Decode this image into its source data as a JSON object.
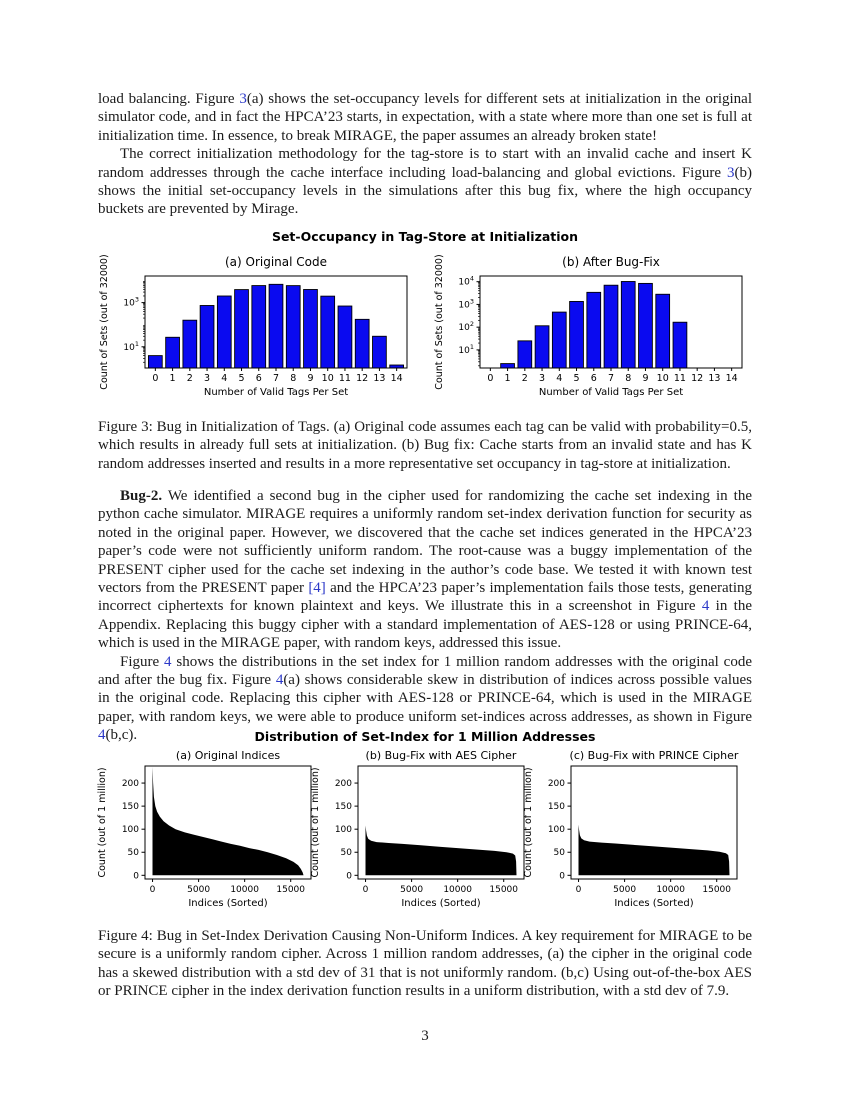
{
  "page_number": "3",
  "colors": {
    "link": "#2b38c8",
    "bar_fill": "#0a0af0",
    "bar_edge": "#000000",
    "area_fill": "#000000",
    "axis": "#000000",
    "text": "#1b1b1b"
  },
  "paragraphs": {
    "p1": [
      {
        "t": "load balancing. Figure "
      },
      {
        "t": "3",
        "c": "link"
      },
      {
        "t": "(a) shows the set-occupancy levels for different sets at initialization in the original simulator code, and in fact the HPCA’23 starts, in expectation, with a state where more than one set is full at initialization time. In essence, to break MIRAGE, the paper assumes an already broken state!"
      }
    ],
    "p2": [
      {
        "t": "The correct initialization methodology for the tag-store is to start with an invalid cache and insert K random addresses through the cache interface including load-balancing and global evictions. Figure "
      },
      {
        "t": "3",
        "c": "link"
      },
      {
        "t": "(b) shows the initial set-occupancy levels in the simulations after this bug fix, where the high occupancy buckets are prevented by Mirage."
      }
    ],
    "fig3_caption": [
      {
        "t": "Figure 3: Bug in Initialization of Tags. (a) Original code assumes each tag can be valid with probability=0.5, which results in already full sets at initialization. (b) Bug fix: Cache starts from an invalid state and has K random addresses inserted and results in a more representative set occupancy in tag-store at initialization."
      }
    ],
    "bug2": [
      {
        "t": "Bug-2.",
        "c": "bold"
      },
      {
        "t": " We identified a second bug in the cipher used for randomizing the cache set indexing in the python cache simulator. MIRAGE requires a uniformly random set-index derivation function for security as noted in the original paper. However, we discovered that the cache set indices generated in the HPCA’23 paper’s code were not sufficiently uniform random. The root-cause was a buggy implementation of the PRESENT cipher used for the cache set indexing in the author’s code base. We tested it with known test vectors from the PRESENT paper "
      },
      {
        "t": "[4]",
        "c": "link"
      },
      {
        "t": " and the HPCA’23 paper’s implementation fails those tests, generating incorrect ciphertexts for known plaintext and keys. We illustrate this in a screenshot in Figure "
      },
      {
        "t": "4",
        "c": "link"
      },
      {
        "t": " in the Appendix. Replacing this buggy cipher with a standard implementation of AES-128 or using PRINCE-64, which is used in the MIRAGE paper, with random keys, addressed this issue."
      }
    ],
    "p4": [
      {
        "t": "Figure "
      },
      {
        "t": "4",
        "c": "link"
      },
      {
        "t": " shows the distributions in the set index for 1 million random addresses with the original code and after the bug fix. Figure "
      },
      {
        "t": "4",
        "c": "link"
      },
      {
        "t": "(a) shows considerable skew in distribution of indices across possible values in the original code. Replacing this cipher with AES-128 or PRINCE-64, which is used in the MIRAGE paper, with random keys, we were able to produce uniform set-indices across addresses, as shown in Figure "
      },
      {
        "t": "4",
        "c": "link"
      },
      {
        "t": "(b,c)."
      }
    ],
    "fig4_caption": [
      {
        "t": "Figure 4: Bug in Set-Index Derivation Causing Non-Uniform Indices. A key requirement for MIRAGE to be secure is a uniformly random cipher. Across 1 million random addresses, (a) the cipher in the original code has a skewed distribution with a std dev of 31 that is not uniformly random. (b,c) Using out-of-the-box AES or PRINCE cipher in the index derivation function results in a uniform distribution, with a std dev of 7.9."
      }
    ]
  },
  "figures": {
    "fig3": {
      "suptitle": "Set-Occupancy in Tag-Store at Initialization"
    },
    "fig4": {
      "suptitle": "Distribution of Set-Index for 1 Million Addresses"
    }
  },
  "chart_data": [
    {
      "id": "fig3a",
      "type": "bar",
      "title": "(a) Original Code",
      "xlabel": "Number of Valid Tags Per Set",
      "ylabel": "Count of Sets (out of 32000)",
      "yscale": "log",
      "categories": [
        0,
        1,
        2,
        3,
        4,
        5,
        6,
        7,
        8,
        9,
        10,
        11,
        12,
        13,
        14
      ],
      "values": [
        4,
        27,
        160,
        740,
        1990,
        3880,
        5900,
        6720,
        5870,
        3920,
        1960,
        700,
        175,
        30,
        1.5
      ],
      "xlim": [
        -0.6,
        14.6
      ],
      "ylim": [
        1.1,
        16000
      ],
      "yticks": [
        10,
        1000
      ]
    },
    {
      "id": "fig3b",
      "type": "bar",
      "title": "(b) After Bug-Fix",
      "xlabel": "Number of Valid Tags Per Set",
      "ylabel": "Count of Sets (out of 32000)",
      "yscale": "log",
      "categories": [
        0,
        1,
        2,
        3,
        4,
        5,
        6,
        7,
        8,
        9,
        10,
        11,
        12,
        13,
        14
      ],
      "values": [
        0,
        2.5,
        25,
        115,
        460,
        1350,
        3400,
        7000,
        10200,
        8400,
        2800,
        165,
        0,
        0,
        0
      ],
      "xlim": [
        -0.6,
        14.6
      ],
      "ylim": [
        1.6,
        17800
      ],
      "yticks": [
        10,
        100,
        1000,
        10000
      ]
    },
    {
      "id": "fig4a",
      "type": "area",
      "title": "(a) Original Indices",
      "xlabel": "Indices (Sorted)",
      "ylabel": "Count (out of 1 million)",
      "points": [
        [
          0,
          235
        ],
        [
          60,
          200
        ],
        [
          150,
          170
        ],
        [
          300,
          150
        ],
        [
          500,
          138
        ],
        [
          800,
          127
        ],
        [
          1200,
          117
        ],
        [
          1800,
          108
        ],
        [
          2500,
          100
        ],
        [
          3500,
          93
        ],
        [
          4500,
          88
        ],
        [
          5500,
          83
        ],
        [
          6500,
          78
        ],
        [
          7500,
          73
        ],
        [
          8500,
          68
        ],
        [
          9500,
          64
        ],
        [
          10500,
          59
        ],
        [
          11500,
          55
        ],
        [
          12500,
          50
        ],
        [
          13500,
          44
        ],
        [
          14500,
          37
        ],
        [
          15300,
          29
        ],
        [
          15800,
          22
        ],
        [
          16100,
          14
        ],
        [
          16300,
          6
        ],
        [
          16384,
          0
        ]
      ],
      "xlim": [
        -819,
        17203
      ],
      "ylim": [
        -8,
        237
      ],
      "xticks": [
        0,
        5000,
        10000,
        15000
      ],
      "yticks": [
        0,
        50,
        100,
        150,
        200
      ]
    },
    {
      "id": "fig4b",
      "type": "area",
      "title": "(b) Bug-Fix with AES Cipher",
      "xlabel": "Indices (Sorted)",
      "ylabel": "Count (out of 1 million)",
      "points": [
        [
          0,
          108
        ],
        [
          60,
          97
        ],
        [
          150,
          86
        ],
        [
          300,
          79
        ],
        [
          600,
          75
        ],
        [
          1200,
          72
        ],
        [
          2500,
          70
        ],
        [
          4000,
          68
        ],
        [
          6000,
          65
        ],
        [
          8000,
          62
        ],
        [
          10000,
          59
        ],
        [
          12000,
          56
        ],
        [
          14000,
          53
        ],
        [
          15300,
          50
        ],
        [
          16000,
          47
        ],
        [
          16250,
          43
        ],
        [
          16340,
          30
        ],
        [
          16384,
          0
        ]
      ],
      "xlim": [
        -819,
        17203
      ],
      "ylim": [
        -8,
        237
      ],
      "xticks": [
        0,
        5000,
        10000,
        15000
      ],
      "yticks": [
        0,
        50,
        100,
        150,
        200
      ]
    },
    {
      "id": "fig4c",
      "type": "area",
      "title": "(c) Bug-Fix with PRINCE Cipher",
      "xlabel": "Indices (Sorted)",
      "ylabel": "Count (out of 1 million)",
      "points": [
        [
          0,
          110
        ],
        [
          60,
          98
        ],
        [
          150,
          87
        ],
        [
          300,
          80
        ],
        [
          600,
          76
        ],
        [
          1200,
          73
        ],
        [
          2500,
          71
        ],
        [
          4000,
          69
        ],
        [
          6000,
          66
        ],
        [
          8000,
          63
        ],
        [
          10000,
          60
        ],
        [
          12000,
          57
        ],
        [
          14000,
          54
        ],
        [
          15300,
          51
        ],
        [
          16000,
          48
        ],
        [
          16250,
          44
        ],
        [
          16340,
          30
        ],
        [
          16384,
          0
        ]
      ],
      "xlim": [
        -819,
        17203
      ],
      "ylim": [
        -8,
        237
      ],
      "xticks": [
        0,
        5000,
        10000,
        15000
      ],
      "yticks": [
        0,
        50,
        100,
        150,
        200
      ]
    }
  ]
}
